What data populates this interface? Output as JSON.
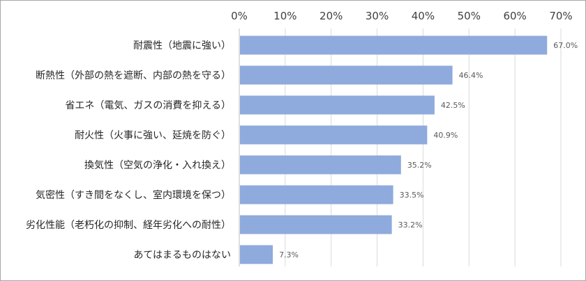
{
  "chart_data": {
    "type": "bar",
    "orientation": "horizontal",
    "categories": [
      "耐震性（地震に強い）",
      "断熱性（外部の熱を遮断、内部の熱を守る）",
      "省エネ（電気、ガスの消費を抑える）",
      "耐火性（火事に強い、延焼を防ぐ）",
      "換気性（空気の浄化・入れ換え）",
      "気密性（すき間をなくし、室内環境を保つ）",
      "劣化性能（老朽化の抑制、経年劣化への耐性）",
      "あてはまるものはない"
    ],
    "values": [
      67.0,
      46.4,
      42.5,
      40.9,
      35.2,
      33.5,
      33.2,
      7.3
    ],
    "data_labels": [
      "67.0%",
      "46.4%",
      "42.5%",
      "40.9%",
      "35.2%",
      "33.5%",
      "33.2%",
      "7.3%"
    ],
    "x_ticks": [
      0,
      10,
      20,
      30,
      40,
      50,
      60,
      70
    ],
    "x_tick_labels": [
      "0%",
      "10%",
      "20%",
      "30%",
      "40%",
      "50%",
      "60%",
      "70%"
    ],
    "xlim": [
      0,
      70
    ],
    "x_axis_position": "top",
    "grid": "vertical",
    "legend": "none",
    "title": "",
    "xlabel": "",
    "ylabel": "",
    "colors": {
      "bar": "#8faadc",
      "grid": "#d9d9d9",
      "axis": "#bfbfbf",
      "frame": "#a6a6a6"
    }
  }
}
